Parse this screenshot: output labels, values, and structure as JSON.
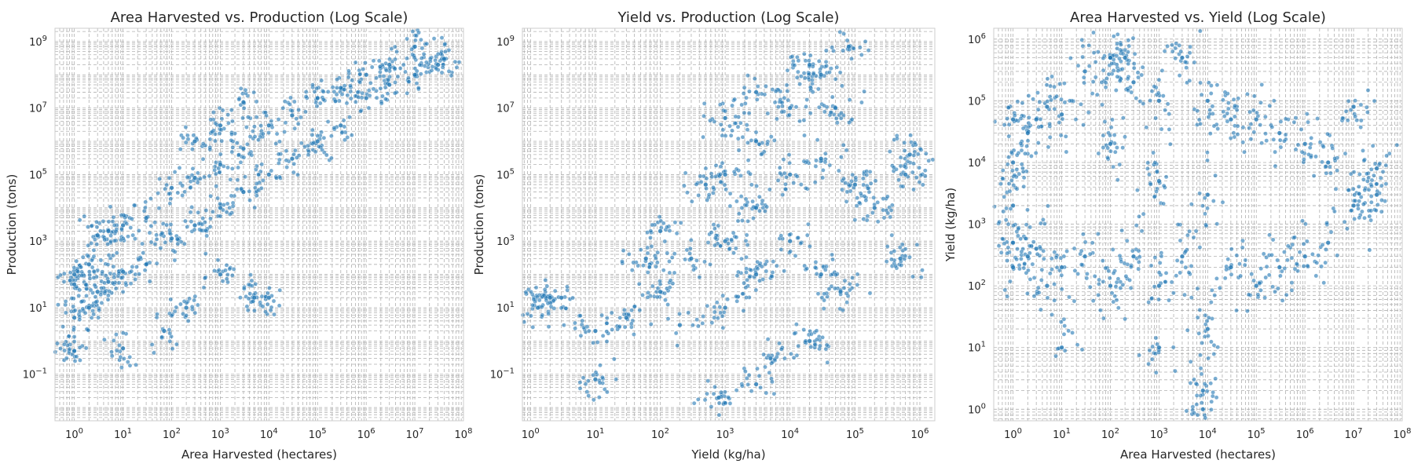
{
  "chart_data": [
    {
      "type": "scatter",
      "title": "Area Harvested vs. Production (Log Scale)",
      "xlabel": "Area Harvested (hectares)",
      "ylabel": "Production (tons)",
      "xscale": "log",
      "yscale": "log",
      "xlim": [
        0.4,
        100000000
      ],
      "ylim": [
        0.004,
        2500000000
      ],
      "xticks": [
        {
          "base": "10",
          "exp": "0",
          "v": 1
        },
        {
          "base": "10",
          "exp": "1",
          "v": 10
        },
        {
          "base": "10",
          "exp": "2",
          "v": 100
        },
        {
          "base": "10",
          "exp": "3",
          "v": 1000
        },
        {
          "base": "10",
          "exp": "4",
          "v": 10000
        },
        {
          "base": "10",
          "exp": "5",
          "v": 100000
        },
        {
          "base": "10",
          "exp": "6",
          "v": 1000000
        },
        {
          "base": "10",
          "exp": "7",
          "v": 10000000
        },
        {
          "base": "10",
          "exp": "8",
          "v": 100000000
        }
      ],
      "yticks": [
        {
          "base": "10",
          "exp": "−1",
          "v": 0.1
        },
        {
          "base": "10",
          "exp": "1",
          "v": 10
        },
        {
          "base": "10",
          "exp": "3",
          "v": 1000
        },
        {
          "base": "10",
          "exp": "5",
          "v": 100000
        },
        {
          "base": "10",
          "exp": "7",
          "v": 10000000
        },
        {
          "base": "10",
          "exp": "9",
          "v": 1000000000
        }
      ],
      "grid": true,
      "series": [
        {
          "color": "#1f77b4",
          "points": [
            [
              1,
              0.5
            ],
            [
              1,
              5
            ],
            [
              1,
              50
            ],
            [
              1,
              100
            ],
            [
              2,
              10
            ],
            [
              2,
              200
            ],
            [
              3,
              30
            ],
            [
              3,
              1500
            ],
            [
              5,
              60
            ],
            [
              5,
              2000
            ],
            [
              10,
              120
            ],
            [
              10,
              3000
            ],
            [
              30,
              200
            ],
            [
              30,
              5000
            ],
            [
              100,
              1200
            ],
            [
              100,
              40000
            ],
            [
              300,
              3000
            ],
            [
              300,
              80000
            ],
            [
              1000,
              10000
            ],
            [
              1000,
              200000
            ],
            [
              3000,
              30000
            ],
            [
              3000,
              600000
            ],
            [
              10000,
              100000
            ],
            [
              10000,
              3000000
            ],
            [
              30000,
              300000
            ],
            [
              30000,
              6000000
            ],
            [
              100000,
              1000000
            ],
            [
              100000,
              20000000
            ],
            [
              300000,
              3000000
            ],
            [
              300000,
              40000000
            ],
            [
              1000000,
              20000000
            ],
            [
              1000000,
              100000000
            ],
            [
              3000000,
              50000000
            ],
            [
              3000000,
              200000000
            ],
            [
              10000000,
              100000000
            ],
            [
              10000000,
              700000000
            ],
            [
              30000000,
              200000000
            ],
            [
              40000000,
              300000000
            ],
            [
              10,
              0.6
            ],
            [
              70,
              2
            ],
            [
              200,
              10
            ],
            [
              1000,
              100
            ],
            [
              5000,
              20
            ],
            [
              10000,
              20
            ],
            [
              3000,
              15000000
            ],
            [
              1000,
              3000000
            ],
            [
              300,
              1000000
            ]
          ]
        }
      ]
    },
    {
      "type": "scatter",
      "title": "Yield vs. Production (Log Scale)",
      "xlabel": "Yield (kg/ha)",
      "ylabel": "Production (tons)",
      "xscale": "log",
      "yscale": "log",
      "xlim": [
        0.75,
        1700000
      ],
      "ylim": [
        0.004,
        2500000000
      ],
      "xticks": [
        {
          "base": "10",
          "exp": "0",
          "v": 1
        },
        {
          "base": "10",
          "exp": "1",
          "v": 10
        },
        {
          "base": "10",
          "exp": "2",
          "v": 100
        },
        {
          "base": "10",
          "exp": "3",
          "v": 1000
        },
        {
          "base": "10",
          "exp": "4",
          "v": 10000
        },
        {
          "base": "10",
          "exp": "5",
          "v": 100000
        },
        {
          "base": "10",
          "exp": "6",
          "v": 1000000
        }
      ],
      "yticks": [
        {
          "base": "10",
          "exp": "−1",
          "v": 0.1
        },
        {
          "base": "10",
          "exp": "1",
          "v": 10
        },
        {
          "base": "10",
          "exp": "3",
          "v": 1000
        },
        {
          "base": "10",
          "exp": "5",
          "v": 100000
        },
        {
          "base": "10",
          "exp": "7",
          "v": 10000000
        },
        {
          "base": "10",
          "exp": "9",
          "v": 1000000000
        }
      ],
      "grid": true,
      "series": [
        {
          "color": "#1f77b4",
          "points": [
            [
              1.3,
              10
            ],
            [
              2,
              20
            ],
            [
              3,
              20
            ],
            [
              10,
              0.07
            ],
            [
              10,
              2
            ],
            [
              30,
              5
            ],
            [
              60,
              300
            ],
            [
              100,
              30
            ],
            [
              100,
              2000
            ],
            [
              200,
              3
            ],
            [
              300,
              300
            ],
            [
              500,
              50000
            ],
            [
              1000,
              10
            ],
            [
              1000,
              1000
            ],
            [
              1000,
              100000
            ],
            [
              1000,
              5000000
            ],
            [
              3000,
              0.05
            ],
            [
              3000,
              100
            ],
            [
              3000,
              10000
            ],
            [
              3000,
              1000000
            ],
            [
              3000,
              30000000
            ],
            [
              10000,
              1000
            ],
            [
              10000,
              100000
            ],
            [
              10000,
              10000000
            ],
            [
              30000,
              100
            ],
            [
              30000,
              300000
            ],
            [
              30000,
              100000000
            ],
            [
              50000,
              10000000
            ],
            [
              80000,
              700000000
            ],
            [
              100000,
              50000
            ],
            [
              200000,
              10000
            ],
            [
              500000,
              300
            ],
            [
              600000,
              100000
            ],
            [
              700000,
              400000
            ],
            [
              800,
              0.02
            ],
            [
              5000,
              0.3
            ],
            [
              20000,
              200000000
            ],
            [
              20000,
              1
            ],
            [
              60000,
              30
            ]
          ]
        }
      ]
    },
    {
      "type": "scatter",
      "title": "Area Harvested vs. Yield (Log Scale)",
      "xlabel": "Area Harvested (hectares)",
      "ylabel": "Yield (kg/ha)",
      "xscale": "log",
      "yscale": "log",
      "xlim": [
        0.4,
        100000000
      ],
      "ylim": [
        0.65,
        1500000
      ],
      "xticks": [
        {
          "base": "10",
          "exp": "0",
          "v": 1
        },
        {
          "base": "10",
          "exp": "1",
          "v": 10
        },
        {
          "base": "10",
          "exp": "2",
          "v": 100
        },
        {
          "base": "10",
          "exp": "3",
          "v": 1000
        },
        {
          "base": "10",
          "exp": "4",
          "v": 10000
        },
        {
          "base": "10",
          "exp": "5",
          "v": 100000
        },
        {
          "base": "10",
          "exp": "6",
          "v": 1000000
        },
        {
          "base": "10",
          "exp": "7",
          "v": 10000000
        },
        {
          "base": "10",
          "exp": "8",
          "v": 100000000
        }
      ],
      "yticks": [
        {
          "base": "10",
          "exp": "0",
          "v": 1
        },
        {
          "base": "10",
          "exp": "1",
          "v": 10
        },
        {
          "base": "10",
          "exp": "2",
          "v": 100
        },
        {
          "base": "10",
          "exp": "3",
          "v": 1000
        },
        {
          "base": "10",
          "exp": "4",
          "v": 10000
        },
        {
          "base": "10",
          "exp": "5",
          "v": 100000
        },
        {
          "base": "10",
          "exp": "6",
          "v": 1000000
        }
      ],
      "grid": true,
      "series": [
        {
          "color": "#1f77b4",
          "points": [
            [
              1,
              200
            ],
            [
              1,
              500
            ],
            [
              1,
              2000
            ],
            [
              1,
              10000
            ],
            [
              1,
              50000
            ],
            [
              2,
              300
            ],
            [
              2,
              30000
            ],
            [
              3,
              400
            ],
            [
              3,
              50000
            ],
            [
              5,
              100
            ],
            [
              5,
              80000
            ],
            [
              10,
              200
            ],
            [
              10,
              60000
            ],
            [
              30,
              300
            ],
            [
              30,
              300000
            ],
            [
              100,
              100
            ],
            [
              100,
              500000
            ],
            [
              100,
              20000
            ],
            [
              300,
              300
            ],
            [
              300,
              200000
            ],
            [
              1000,
              100
            ],
            [
              1000,
              5000
            ],
            [
              1000,
              100000
            ],
            [
              3000,
              300
            ],
            [
              3000,
              500000
            ],
            [
              10000,
              20
            ],
            [
              10000,
              3000
            ],
            [
              10000,
              100000
            ],
            [
              30000,
              200
            ],
            [
              30000,
              50000
            ],
            [
              100000,
              100
            ],
            [
              100000,
              50000
            ],
            [
              300000,
              200
            ],
            [
              300000,
              30000
            ],
            [
              1000000,
              300
            ],
            [
              1000000,
              20000
            ],
            [
              3000000,
              500
            ],
            [
              3000000,
              10000
            ],
            [
              10000000,
              2000
            ],
            [
              10000000,
              80000
            ],
            [
              30000000,
              3000
            ],
            [
              30000000,
              8000
            ],
            [
              8000,
              1
            ],
            [
              8000,
              2
            ],
            [
              1000,
              10
            ],
            [
              10,
              10
            ],
            [
              100,
              500000
            ],
            [
              200,
              500000
            ]
          ]
        }
      ]
    }
  ]
}
